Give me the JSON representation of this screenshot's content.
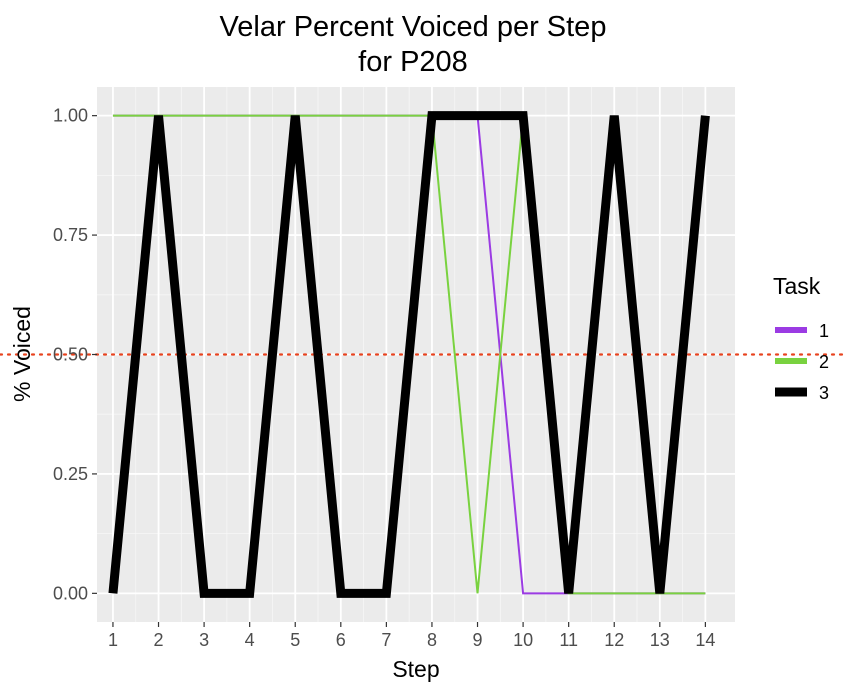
{
  "chart_data": {
    "type": "line",
    "title": [
      "Velar Percent Voiced per Step",
      "for P208"
    ],
    "xlabel": "Step",
    "ylabel": "% Voiced",
    "x": [
      1,
      2,
      3,
      4,
      5,
      6,
      7,
      8,
      9,
      10,
      11,
      12,
      13,
      14
    ],
    "xlim": [
      0.65,
      14.65
    ],
    "ylim": [
      -0.06,
      1.06
    ],
    "x_tick_labels": [
      "1",
      "2",
      "3",
      "4",
      "5",
      "6",
      "7",
      "8",
      "9",
      "10",
      "11",
      "12",
      "13",
      "14"
    ],
    "y_ticks": [
      0,
      0.25,
      0.5,
      0.75,
      1
    ],
    "y_tick_labels": [
      "0.00",
      "0.25",
      "0.50",
      "0.75",
      "1.00"
    ],
    "grid": true,
    "reference_line": {
      "y": 0.5,
      "style": "dotted",
      "color": "#e8431f"
    },
    "legend": {
      "title": "Task",
      "placement": "right"
    },
    "series": [
      {
        "name": "1",
        "color": "#9b3be3",
        "weight": "thin",
        "values": [
          1,
          1,
          1,
          1,
          1,
          1,
          1,
          1,
          1,
          0,
          0,
          0,
          0,
          0
        ]
      },
      {
        "name": "2",
        "color": "#79d23f",
        "weight": "thin",
        "values": [
          1,
          1,
          1,
          1,
          1,
          1,
          1,
          1,
          0,
          1,
          0,
          0,
          0,
          0
        ]
      },
      {
        "name": "3",
        "color": "#000000",
        "weight": "thick",
        "values": [
          0,
          1,
          0,
          0,
          1,
          0,
          0,
          1,
          1,
          1,
          0,
          1,
          0,
          1
        ]
      }
    ]
  }
}
